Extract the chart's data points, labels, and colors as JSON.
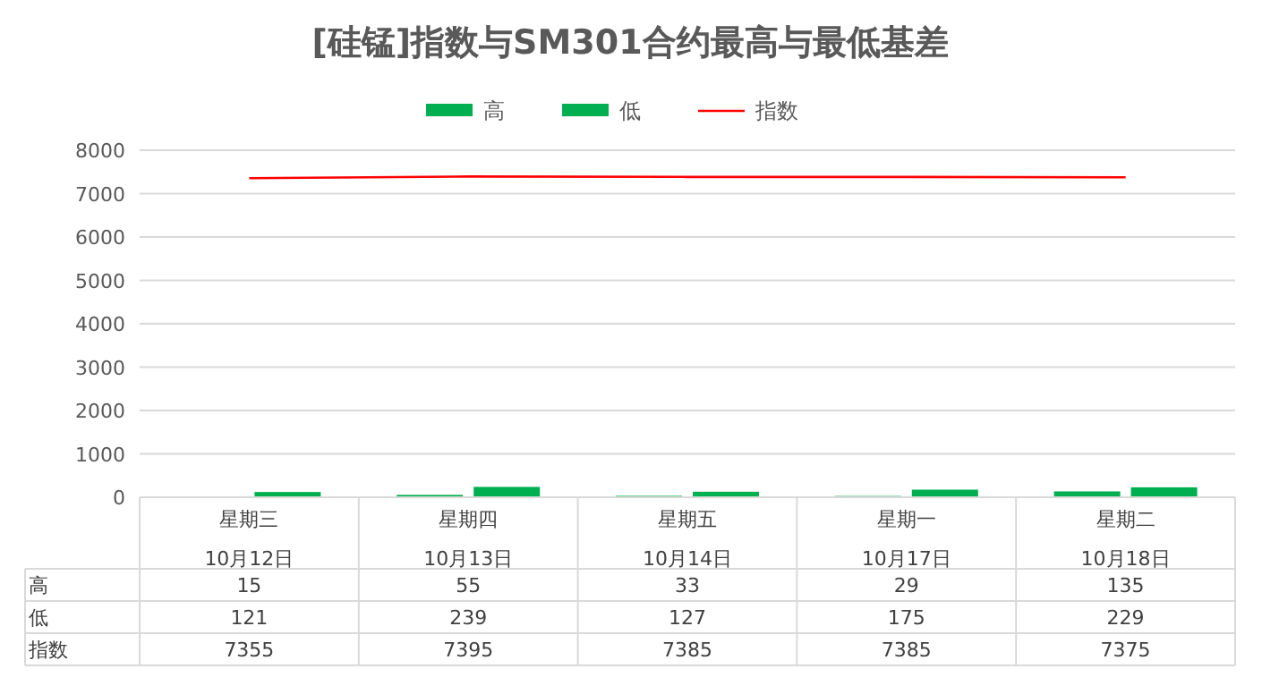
{
  "chart_data": {
    "type": "bar",
    "title": "[硅锰]指数与SM301合约最高与最低基差",
    "categories": [
      "星期三 10月12日",
      "星期四 10月13日",
      "星期五 10月14日",
      "星期一 10月17日",
      "星期二 10月18日"
    ],
    "series": [
      {
        "name": "高",
        "color": "#00b050",
        "values": [
          15,
          55,
          33,
          29,
          135
        ]
      },
      {
        "name": "低",
        "color": "#00b050",
        "values": [
          121,
          239,
          127,
          175,
          229
        ]
      },
      {
        "name": "指数",
        "type": "line",
        "color": "#ff0000",
        "values": [
          7355,
          7395,
          7385,
          7385,
          7375
        ]
      }
    ],
    "ylim": [
      0,
      8000
    ],
    "yticks": [
      0,
      1000,
      2000,
      3000,
      4000,
      5000,
      6000,
      7000,
      8000
    ],
    "grid": "y",
    "legend": "top",
    "data_labels": true
  }
}
